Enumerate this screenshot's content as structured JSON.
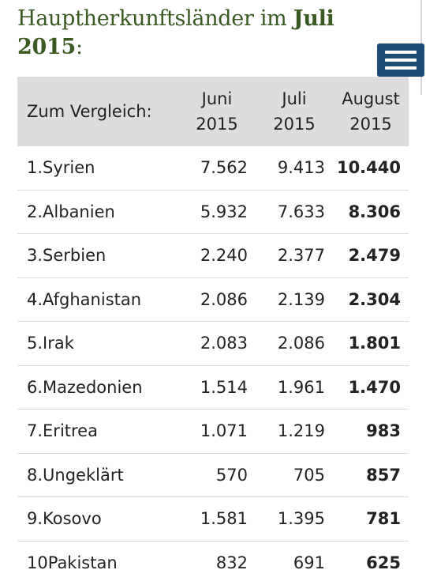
{
  "header": {
    "title_prefix": "Hauptherkunftsländer im ",
    "title_bold_month": "Juli",
    "title_bold_year": "2015",
    "title_suffix": ":"
  },
  "table": {
    "columns": {
      "label": "Zum Vergleich:",
      "june": [
        "Juni",
        "2015"
      ],
      "july": [
        "Juli",
        "2015"
      ],
      "august": [
        "August",
        "2015"
      ]
    },
    "rows": [
      {
        "name": "1.Syrien",
        "june": "7.562",
        "july": "9.413",
        "august": "10.440"
      },
      {
        "name": "2.Albanien",
        "june": "5.932",
        "july": "7.633",
        "august": "8.306"
      },
      {
        "name": "3.Serbien",
        "june": "2.240",
        "july": "2.377",
        "august": "2.479"
      },
      {
        "name": "4.Afghanistan",
        "june": "2.086",
        "july": "2.139",
        "august": "2.304"
      },
      {
        "name": "5.Irak",
        "june": "2.083",
        "july": "2.086",
        "august": "1.801"
      },
      {
        "name": "6.Mazedonien",
        "june": "1.514",
        "july": "1.961",
        "august": "1.470"
      },
      {
        "name": "7.Eritrea",
        "june": "1.071",
        "july": "1.219",
        "august": "983"
      },
      {
        "name": "8.Ungeklärt",
        "june": "570",
        "july": "705",
        "august": "857"
      },
      {
        "name": "9.Kosovo",
        "june": "1.581",
        "july": "1.395",
        "august": "781"
      },
      {
        "name": "10Pakistan",
        "june": "832",
        "july": "691",
        "august": "625"
      }
    ]
  },
  "menu": {
    "icon": "hamburger-menu-icon",
    "color": "#1f4d78"
  },
  "colors": {
    "title": "#3a5a22",
    "header_bg": "#dddddd"
  }
}
